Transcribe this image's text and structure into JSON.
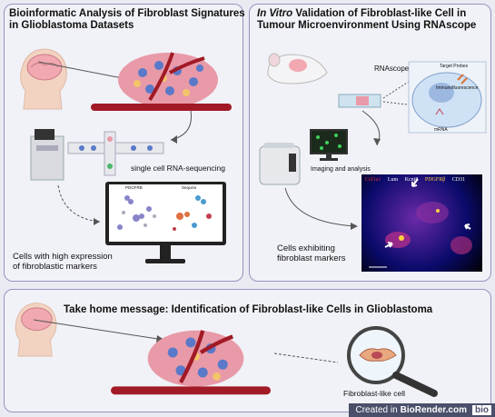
{
  "panel_left": {
    "title_line1": "Bioinformatic Analysis of Fibroblast Signatures",
    "title_line2": "in Glioblastoma Datasets",
    "scrna_label": "single cell RNA-sequencing",
    "result_line1": "Cells with high expression",
    "result_line2": "of fibroblastic markers",
    "plot_titles": [
      "PDGFRB",
      "Sequins"
    ]
  },
  "panel_right": {
    "title_italic": "In Vitro",
    "title_rest": " Validation of Fibroblast-like Cell in",
    "title_line2": "Tumour Microenvironment Using RNAscope",
    "rnascope_label": "RNAscope",
    "target_probes_label": "Target Probes",
    "immuno_label": "Immunofluorescence",
    "mrna_label": "mRNA",
    "imaging_label": "Imaging and analysis",
    "result_line1": "Cells exhibiting",
    "result_line2": "fibroblast markers",
    "stain_labels": [
      {
        "text": "Col1a1",
        "color": "#e0303a"
      },
      {
        "text": "Lum",
        "color": "#ffffff"
      },
      {
        "text": "Kcnj8",
        "color": "#ffffff"
      },
      {
        "text": "PDGFRβ",
        "color": "#ffd040"
      },
      {
        "text": "CD31",
        "color": "#ffffff"
      }
    ]
  },
  "panel_bottom": {
    "title": "Take home message: Identification of Fibroblast-like Cells in Glioblastoma",
    "cell_label": "Fibroblast-like cell"
  },
  "footer": {
    "created_in": "Created in",
    "brand": "BioRender.com",
    "badge": "bio"
  }
}
